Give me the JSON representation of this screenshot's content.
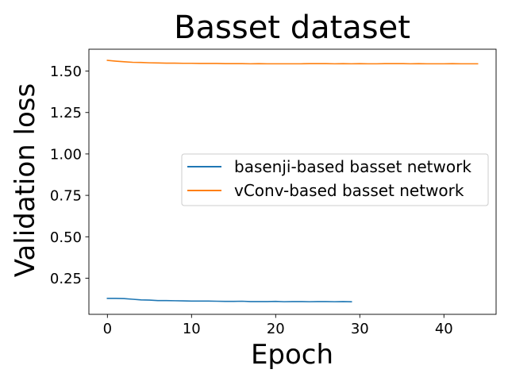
{
  "chart_data": {
    "type": "line",
    "title": "Basset dataset",
    "xlabel": "Epoch",
    "ylabel": "Validation loss",
    "xlim": [
      -2.2,
      46.2
    ],
    "ylim": [
      0.032,
      1.632
    ],
    "xticks": [
      0,
      10,
      20,
      30,
      40
    ],
    "xtick_labels": [
      "0",
      "10",
      "20",
      "30",
      "40"
    ],
    "yticks": [
      0.25,
      0.5,
      0.75,
      1.0,
      1.25,
      1.5
    ],
    "ytick_labels": [
      "0.25",
      "0.50",
      "0.75",
      "1.00",
      "1.25",
      "1.50"
    ],
    "grid": false,
    "legend_position": "center-right",
    "series": [
      {
        "name": "basenji-based basset network",
        "color": "#1f77b4",
        "x": [
          0,
          1,
          2,
          3,
          4,
          5,
          6,
          7,
          8,
          9,
          10,
          11,
          12,
          13,
          14,
          15,
          16,
          17,
          18,
          19,
          20,
          21,
          22,
          23,
          24,
          25,
          26,
          27,
          28,
          29
        ],
        "y": [
          0.128,
          0.128,
          0.127,
          0.123,
          0.119,
          0.118,
          0.115,
          0.115,
          0.114,
          0.113,
          0.112,
          0.112,
          0.112,
          0.111,
          0.11,
          0.11,
          0.111,
          0.109,
          0.109,
          0.109,
          0.11,
          0.108,
          0.109,
          0.109,
          0.108,
          0.109,
          0.109,
          0.108,
          0.109,
          0.108
        ]
      },
      {
        "name": "vConv-based basset network",
        "color": "#ff7f0e",
        "x": [
          0,
          1,
          2,
          3,
          4,
          5,
          6,
          7,
          8,
          9,
          10,
          11,
          12,
          13,
          14,
          15,
          16,
          17,
          18,
          19,
          20,
          21,
          22,
          23,
          24,
          25,
          26,
          27,
          28,
          29,
          30,
          31,
          32,
          33,
          34,
          35,
          36,
          37,
          38,
          39,
          40,
          41,
          42,
          43,
          44
        ],
        "y": [
          1.565,
          1.56,
          1.556,
          1.553,
          1.552,
          1.55,
          1.549,
          1.548,
          1.548,
          1.547,
          1.547,
          1.546,
          1.546,
          1.546,
          1.545,
          1.545,
          1.545,
          1.544,
          1.545,
          1.544,
          1.544,
          1.544,
          1.544,
          1.544,
          1.545,
          1.545,
          1.545,
          1.544,
          1.545,
          1.544,
          1.545,
          1.544,
          1.544,
          1.545,
          1.545,
          1.545,
          1.544,
          1.545,
          1.544,
          1.544,
          1.544,
          1.545,
          1.544,
          1.544,
          1.544
        ]
      }
    ]
  }
}
